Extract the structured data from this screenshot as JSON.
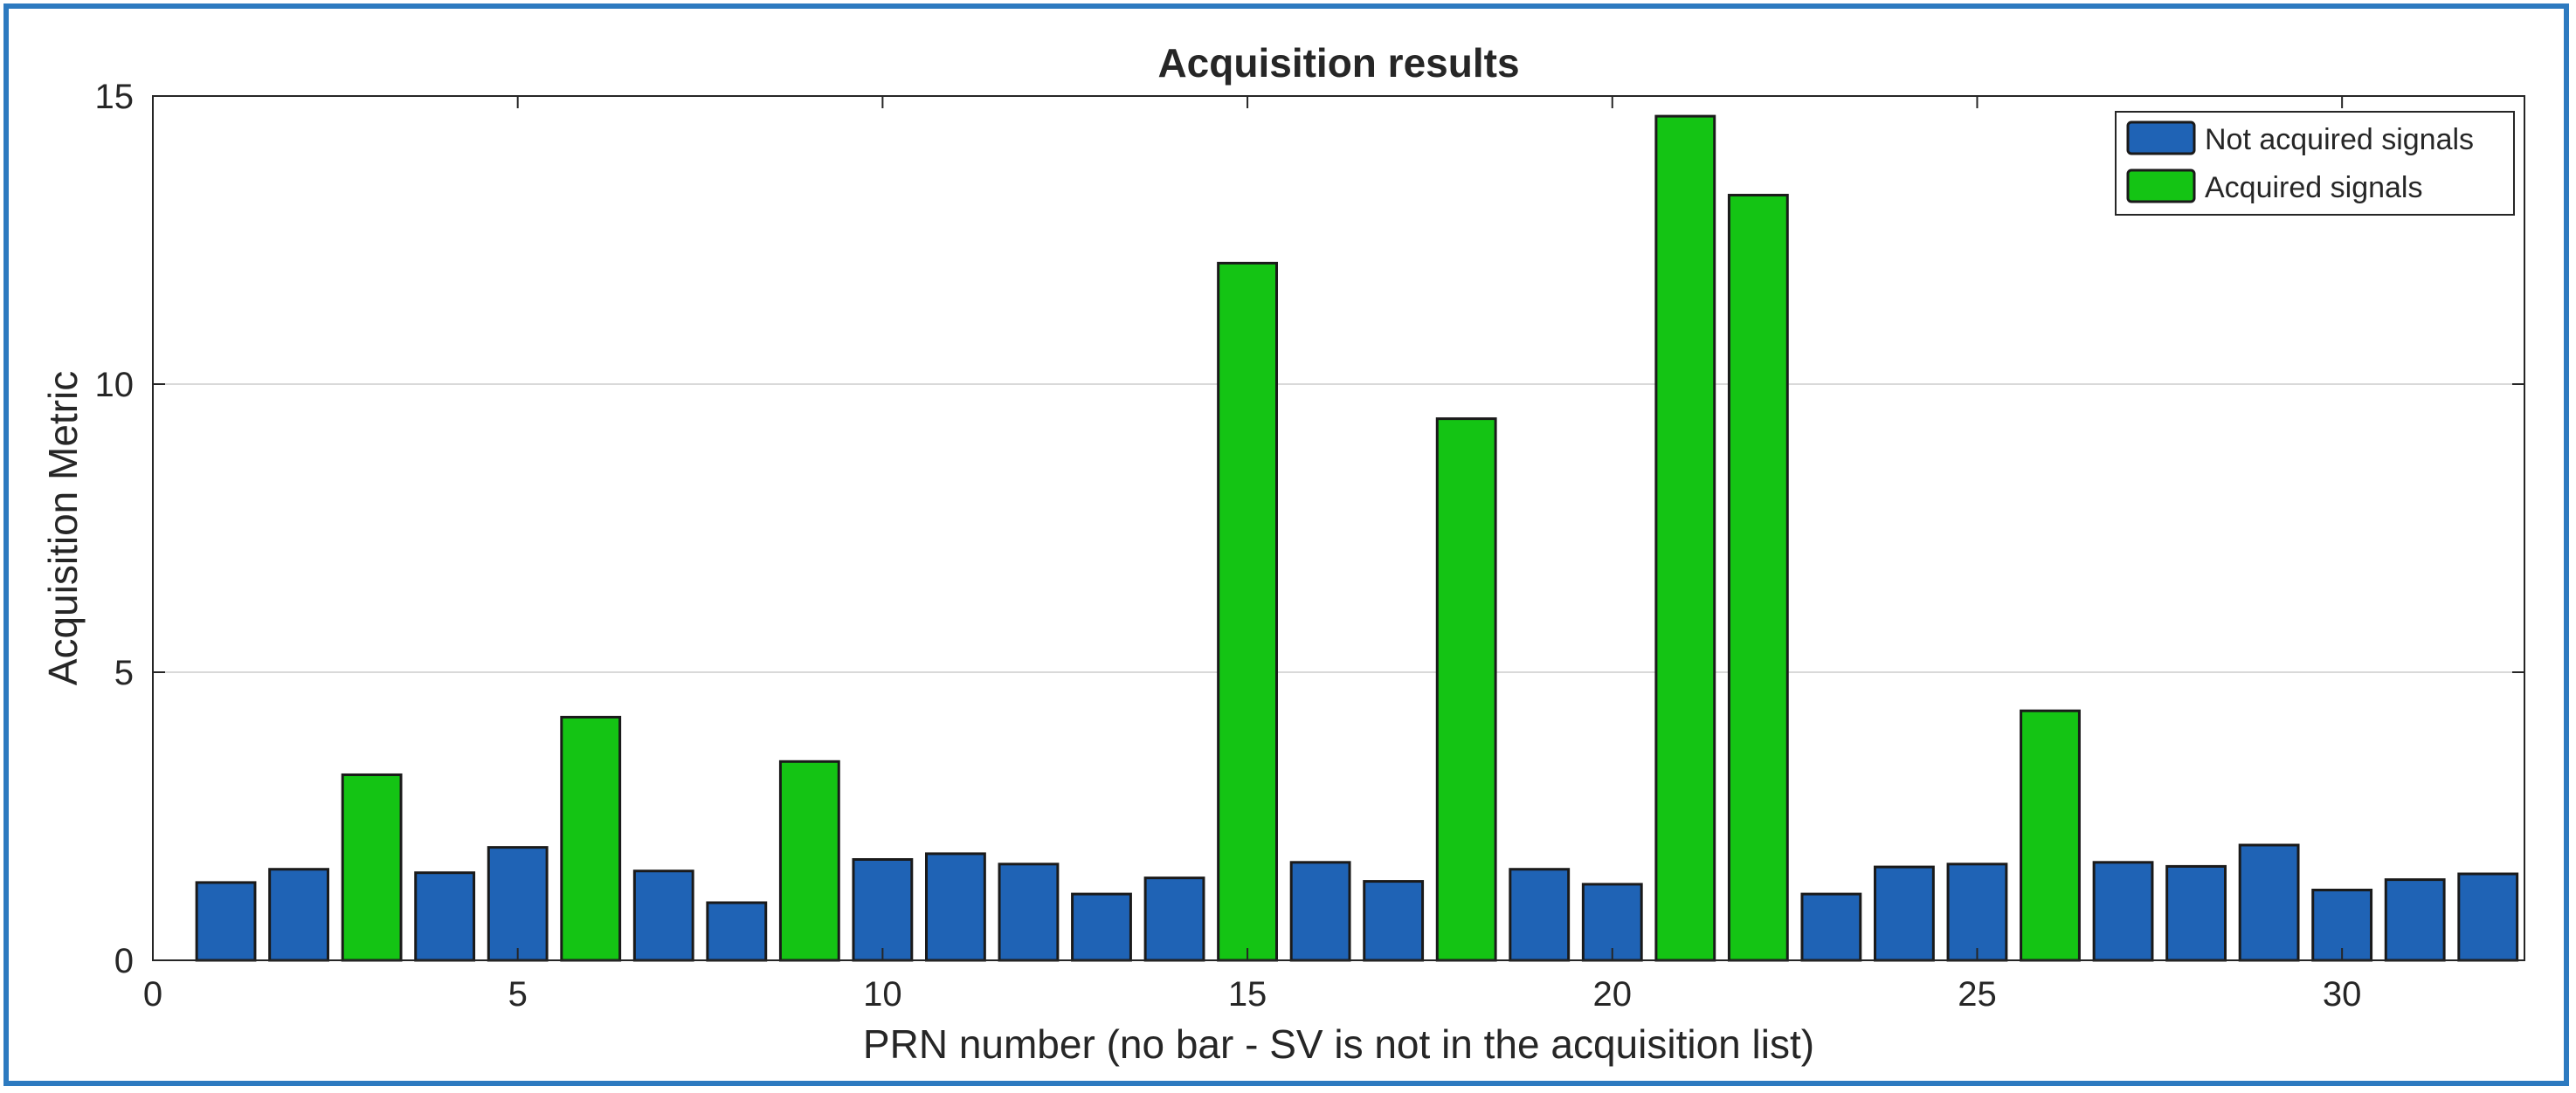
{
  "chart_data": {
    "type": "bar",
    "title": "Acquisition results",
    "xlabel": "PRN number (no bar - SV is not in the acquisition list)",
    "ylabel": "Acquisition Metric",
    "xlim": [
      0,
      32.5
    ],
    "ylim": [
      0,
      15
    ],
    "xticks": [
      0,
      5,
      10,
      15,
      20,
      25,
      30
    ],
    "yticks": [
      0,
      5,
      10,
      15
    ],
    "grid": true,
    "legend_position": "top-right",
    "colors": {
      "not_acquired": "#1f63b5",
      "acquired": "#14c414",
      "frame_border": "#2d7ac0"
    },
    "series": [
      {
        "name": "Not acquired signals",
        "key": "not_acquired",
        "x": [
          1,
          2,
          4,
          5,
          7,
          8,
          10,
          11,
          12,
          13,
          14,
          16,
          17,
          19,
          20,
          23,
          24,
          25,
          27,
          28,
          29,
          30,
          31,
          32
        ],
        "values": [
          1.35,
          1.58,
          1.52,
          1.96,
          1.55,
          1.0,
          1.75,
          1.85,
          1.67,
          1.15,
          1.43,
          1.7,
          1.37,
          1.58,
          1.32,
          1.15,
          1.62,
          1.67,
          1.7,
          1.63,
          2.0,
          1.22,
          1.4,
          1.5
        ]
      },
      {
        "name": "Acquired signals",
        "key": "acquired",
        "x": [
          3,
          6,
          9,
          15,
          18,
          21,
          22,
          26
        ],
        "values": [
          3.22,
          4.22,
          3.45,
          12.1,
          9.4,
          14.65,
          13.28,
          4.33
        ]
      }
    ]
  }
}
